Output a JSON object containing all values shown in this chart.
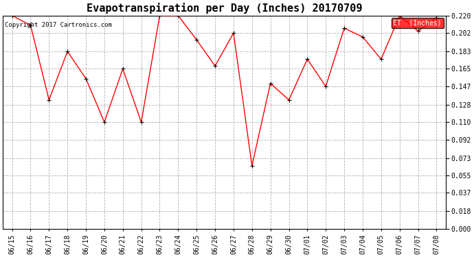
{
  "title": "Evapotranspiration per Day (Inches) 20170709",
  "copyright": "Copyright 2017 Cartronics.com",
  "legend_label": "ET  (Inches)",
  "legend_bg": "#ff0000",
  "legend_text_color": "#ffffff",
  "line_color": "#ff0000",
  "marker_color": "#000000",
  "background_color": "#ffffff",
  "grid_color": "#b0b0b0",
  "dates": [
    "06/15",
    "06/16",
    "06/17",
    "06/18",
    "06/19",
    "06/20",
    "06/21",
    "06/22",
    "06/23",
    "06/24",
    "06/25",
    "06/26",
    "06/27",
    "06/28",
    "06/29",
    "06/30",
    "07/01",
    "07/02",
    "07/03",
    "07/04",
    "07/05",
    "07/06",
    "07/07",
    "07/08"
  ],
  "values": [
    0.22,
    0.21,
    0.133,
    0.183,
    0.155,
    0.11,
    0.165,
    0.11,
    0.22,
    0.22,
    0.195,
    0.168,
    0.202,
    0.065,
    0.15,
    0.133,
    0.175,
    0.147,
    0.207,
    0.198,
    0.175,
    0.22,
    0.204,
    0.218
  ],
  "ylim": [
    0.0,
    0.22
  ],
  "yticks": [
    0.0,
    0.018,
    0.037,
    0.055,
    0.073,
    0.092,
    0.11,
    0.128,
    0.147,
    0.165,
    0.183,
    0.202,
    0.22
  ],
  "title_fontsize": 11,
  "tick_fontsize": 7,
  "copyright_fontsize": 6.5
}
